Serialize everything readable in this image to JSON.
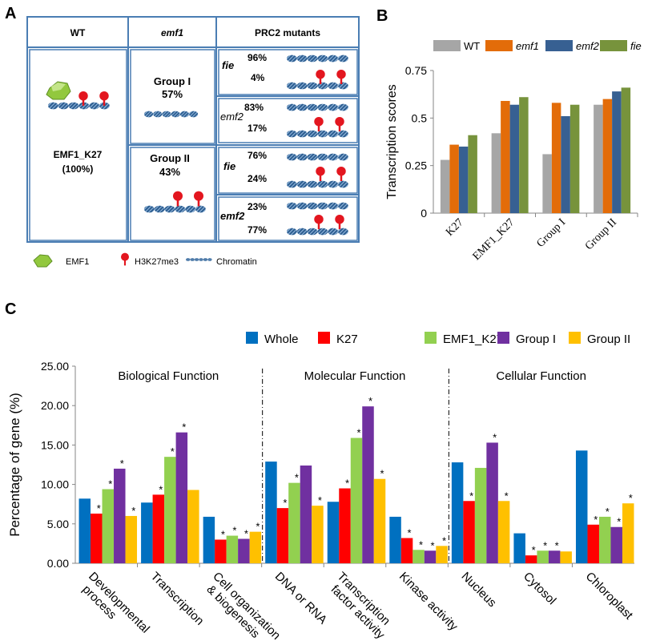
{
  "panels": {
    "a": "A",
    "b": "B",
    "c": "C"
  },
  "panel_a": {
    "headers": {
      "wt": "WT",
      "emf1": "emf1",
      "prc2": "PRC2 mutants"
    },
    "wt_label": "EMF1_K27",
    "wt_pct": "(100%)",
    "group1": {
      "name": "Group I",
      "pct": "57%"
    },
    "group2": {
      "name": "Group II",
      "pct": "43%"
    },
    "rows": [
      {
        "mutant": "fie",
        "top_pct": "96%",
        "bottom_pct": "4%"
      },
      {
        "mutant": "emf2",
        "top_pct": "83%",
        "bottom_pct": "17%"
      },
      {
        "mutant": "fie",
        "top_pct": "76%",
        "bottom_pct": "24%"
      },
      {
        "mutant": "emf2",
        "top_pct": "23%",
        "bottom_pct": "77%"
      }
    ],
    "legend": {
      "emf1": "EMF1",
      "h3k27": "H3K27me3",
      "chromatin": "Chromatin"
    },
    "colors": {
      "border": "#4a7db3",
      "chromatin": "#2e5f91",
      "mark": "#e3161f",
      "emf1": "#92c83e"
    }
  },
  "chart_data": [
    {
      "type": "bar",
      "title": "",
      "xlabel": "",
      "ylabel": "Transcription scores",
      "ylim": [
        0,
        0.75
      ],
      "yticks": [
        "0",
        "0.25",
        "0.5",
        "0.75"
      ],
      "categories": [
        "K27",
        "EMF1_K27",
        "Group I",
        "Group II"
      ],
      "legend_position": "top",
      "series": [
        {
          "name": "WT",
          "color": "#a6a6a6",
          "values": [
            0.28,
            0.42,
            0.31,
            0.57
          ]
        },
        {
          "name": "emf1",
          "color": "#e36c09",
          "values": [
            0.36,
            0.59,
            0.58,
            0.6
          ]
        },
        {
          "name": "emf2",
          "color": "#376092",
          "values": [
            0.35,
            0.57,
            0.51,
            0.64
          ]
        },
        {
          "name": "fie",
          "color": "#77933c",
          "values": [
            0.41,
            0.61,
            0.57,
            0.66
          ]
        }
      ]
    },
    {
      "type": "bar",
      "title": "",
      "xlabel": "",
      "ylabel": "Percentage of gene  (%)",
      "ylim": [
        0,
        25
      ],
      "yticks": [
        "0.00",
        "5.00",
        "10.00",
        "15.00",
        "20.00",
        "25.00"
      ],
      "grid": false,
      "legend_position": "top",
      "sections": [
        "Biological Function",
        "Molecular Function",
        "Cellular Function"
      ],
      "categories": [
        "Developmental process",
        "Transcription",
        "Cell organization & biogenesis",
        "DNA or RNA",
        "Transcription factor activity",
        "Kinase activity",
        "Nucleus",
        "Cytosol",
        "Chloroplast"
      ],
      "category_lines": [
        [
          "Developmental",
          "process"
        ],
        [
          "Transcription"
        ],
        [
          "Cell organization",
          "& biogenesis"
        ],
        [
          "DNA or RNA"
        ],
        [
          "Transcription",
          "factor activity"
        ],
        [
          "Kinase activity"
        ],
        [
          "Nucleus"
        ],
        [
          "Cytosol"
        ],
        [
          "Chloroplast"
        ]
      ],
      "significance_marker": "*",
      "series": [
        {
          "name": "Whole",
          "color": "#0070c0",
          "values": [
            8.2,
            7.7,
            5.9,
            12.9,
            7.8,
            5.9,
            12.8,
            3.8,
            14.3
          ],
          "sig": [
            0,
            0,
            0,
            0,
            0,
            0,
            0,
            0,
            0
          ]
        },
        {
          "name": "K27",
          "color": "#ff0000",
          "values": [
            6.3,
            8.7,
            3.0,
            7.0,
            9.5,
            3.2,
            7.9,
            1.0,
            4.9
          ],
          "sig": [
            1,
            1,
            1,
            1,
            1,
            1,
            1,
            1,
            1
          ]
        },
        {
          "name": "EMF1_K27",
          "color": "#92d050",
          "values": [
            9.4,
            13.5,
            3.5,
            10.2,
            15.9,
            1.7,
            12.1,
            1.6,
            5.9
          ],
          "sig": [
            1,
            1,
            1,
            1,
            1,
            1,
            0,
            1,
            1
          ]
        },
        {
          "name": "Group I",
          "color": "#7030a0",
          "values": [
            12.0,
            16.6,
            3.1,
            12.4,
            19.9,
            1.6,
            15.3,
            1.6,
            4.6
          ],
          "sig": [
            1,
            1,
            1,
            0,
            1,
            1,
            1,
            1,
            1
          ]
        },
        {
          "name": "Group II",
          "color": "#ffc000",
          "values": [
            6.0,
            9.3,
            4.0,
            7.3,
            10.7,
            2.2,
            7.9,
            1.5,
            7.6
          ],
          "sig": [
            1,
            0,
            1,
            1,
            1,
            1,
            1,
            0,
            1
          ]
        }
      ]
    }
  ]
}
